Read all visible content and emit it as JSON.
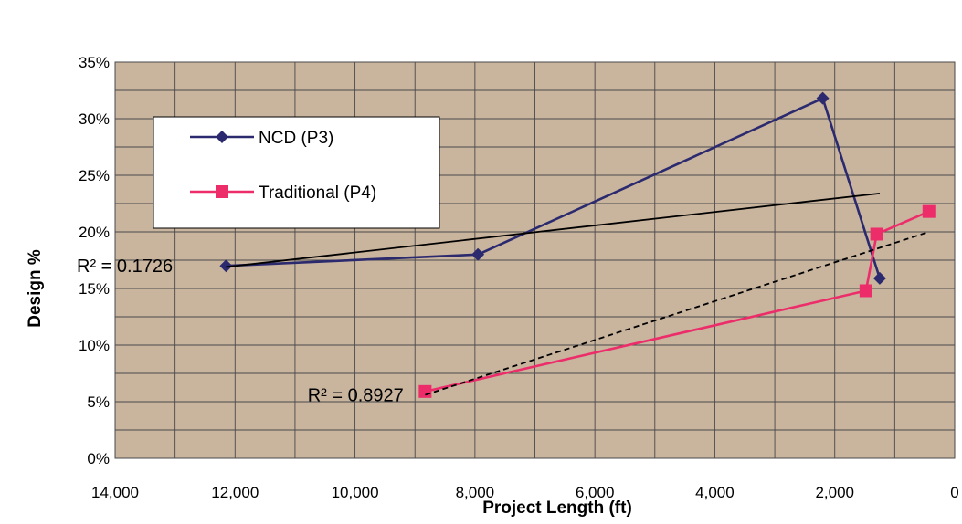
{
  "colors": {
    "plot_background": "#c9b49e",
    "grid": "#4a4a4a",
    "ncd": "#2b2a6e",
    "traditional": "#ec2d6a",
    "trend": "#000000"
  },
  "chart_data": {
    "type": "scatter",
    "xlabel": "Project Length (ft)",
    "ylabel": "Design %",
    "xlim": [
      0,
      14000
    ],
    "x_reversed": true,
    "x_ticks": [
      14000,
      12000,
      10000,
      8000,
      6000,
      4000,
      2000,
      0
    ],
    "x_tick_labels": [
      "14,000",
      "12,000",
      "10,000",
      "8,000",
      "6,000",
      "4,000",
      "2,000",
      "0"
    ],
    "ylim": [
      0,
      35
    ],
    "y_ticks": [
      0,
      5,
      10,
      15,
      20,
      25,
      30,
      35
    ],
    "y_tick_labels": [
      "0%",
      "5%",
      "10%",
      "15%",
      "20%",
      "25%",
      "30%",
      "35%"
    ],
    "x_minor_step": 1000,
    "y_minor_step": 2.5,
    "grid": true,
    "legend_position": "upper-left",
    "series": [
      {
        "name": "NCD (P3)",
        "marker": "diamond",
        "color": "#2b2a6e",
        "points": [
          [
            12150,
            17
          ],
          [
            7950,
            18
          ],
          [
            2200,
            31.8
          ],
          [
            1250,
            15.9
          ]
        ],
        "trendline": {
          "style": "solid",
          "from": [
            12150,
            16.9
          ],
          "to": [
            1250,
            23.4
          ],
          "r2_label": "R² = 0.1726",
          "r2_anchor": [
            14000,
            17
          ]
        }
      },
      {
        "name": "Traditional (P4)",
        "marker": "square",
        "color": "#ec2d6a",
        "points": [
          [
            8830,
            5.9
          ],
          [
            1480,
            14.8
          ],
          [
            1300,
            19.8
          ],
          [
            430,
            21.8
          ]
        ],
        "trendline": {
          "style": "dashed",
          "from": [
            8830,
            5.6
          ],
          "to": [
            430,
            20.0
          ],
          "r2_label": "R² = 0.8927",
          "r2_anchor": [
            10150,
            5.6
          ]
        }
      }
    ]
  }
}
